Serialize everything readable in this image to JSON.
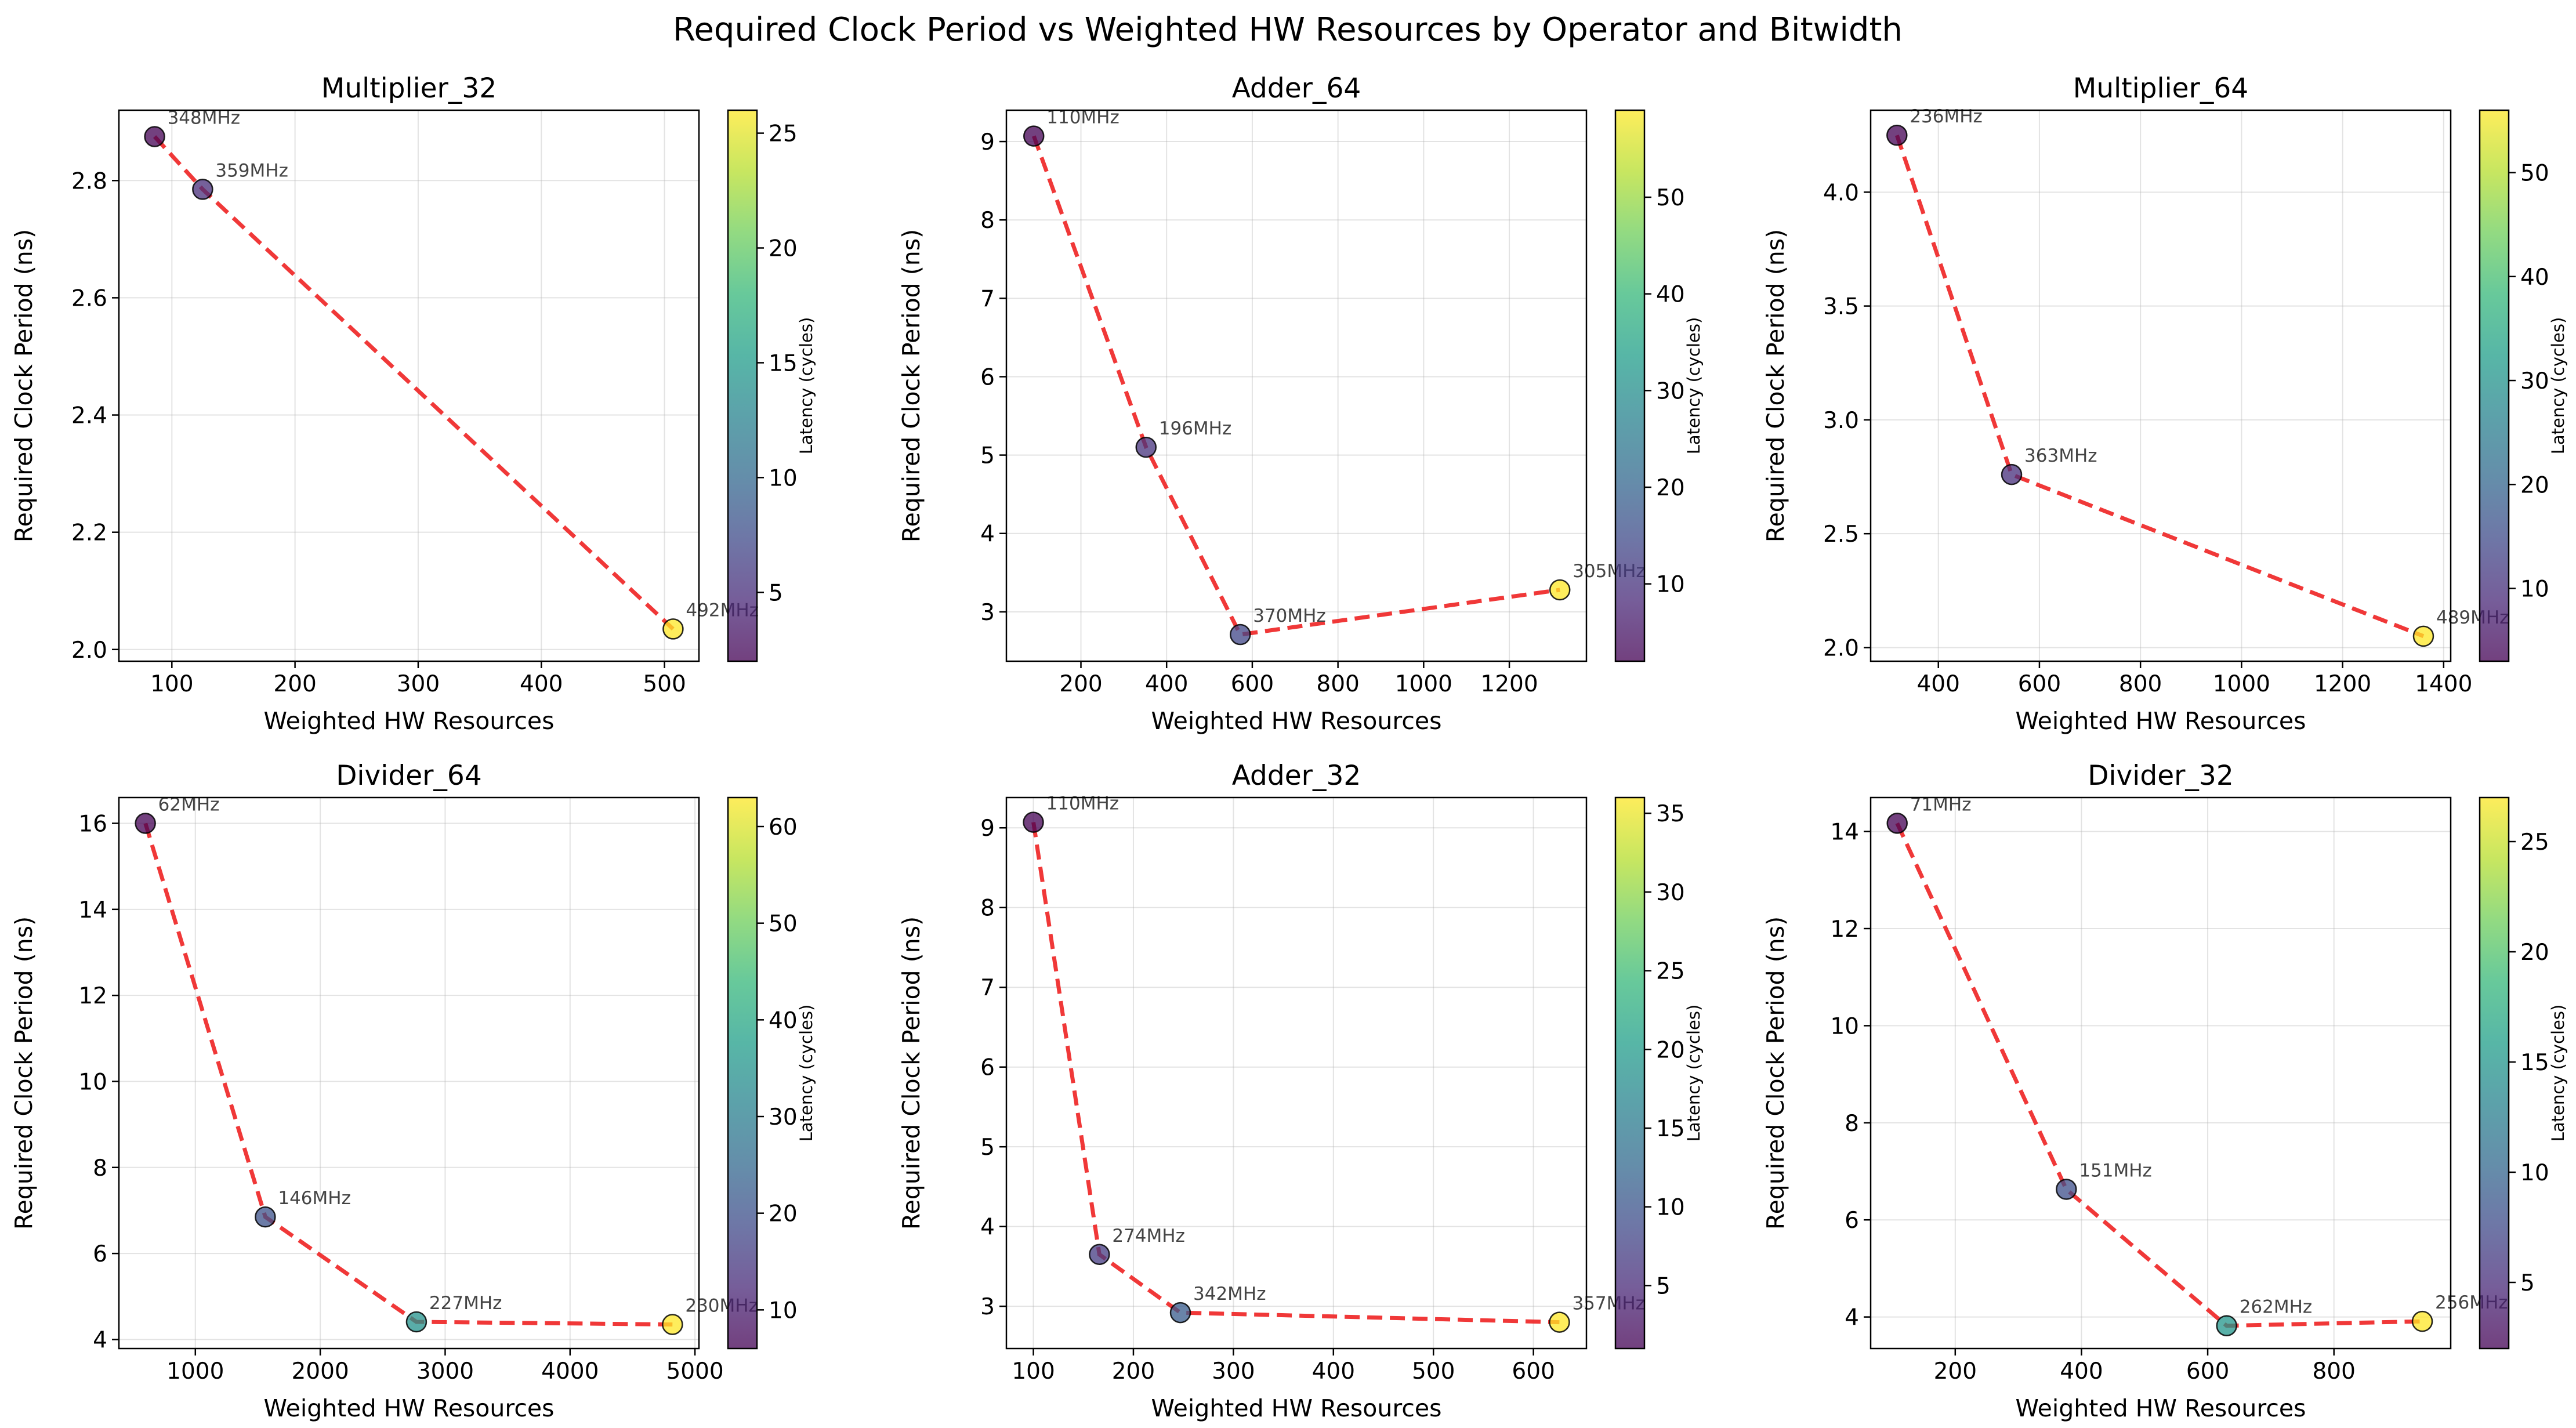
{
  "figure": {
    "title": "Required Clock Period vs Weighted HW Resources by Operator and Bitwidth"
  },
  "colormap": {
    "name": "viridis",
    "stops": [
      "#440154",
      "#482878",
      "#3e4989",
      "#31688e",
      "#26828e",
      "#1f9e89",
      "#35b779",
      "#6ece58",
      "#b5de2b",
      "#fde725"
    ],
    "marker_alpha": 0.75
  },
  "line_color": "#ee2222",
  "chart_data": [
    {
      "type": "scatter",
      "title": "Multiplier_32",
      "xlabel": "Weighted HW Resources",
      "ylabel": "Required Clock Period (ns)",
      "colorbar_label": "Latency (cycles)",
      "xlim": [
        57,
        528
      ],
      "ylim": [
        1.98,
        2.92
      ],
      "xticks": [
        100,
        200,
        300,
        400,
        500
      ],
      "yticks": [
        2.0,
        2.2,
        2.4,
        2.6,
        2.8
      ],
      "clim": [
        2,
        26
      ],
      "cticks": [
        5,
        10,
        15,
        20,
        25
      ],
      "grid": true,
      "points": [
        {
          "x": 86,
          "y": 2.875,
          "latency": 2,
          "label": "348MHz"
        },
        {
          "x": 125,
          "y": 2.785,
          "latency": 5,
          "label": "359MHz"
        },
        {
          "x": 507,
          "y": 2.035,
          "latency": 26,
          "label": "492MHz"
        }
      ]
    },
    {
      "type": "scatter",
      "title": "Adder_64",
      "xlabel": "Weighted HW Resources",
      "ylabel": "Required Clock Period (ns)",
      "colorbar_label": "Latency (cycles)",
      "xlim": [
        26,
        1380
      ],
      "ylim": [
        2.37,
        9.4
      ],
      "xticks": [
        200,
        400,
        600,
        800,
        1000,
        1200
      ],
      "yticks": [
        3,
        4,
        5,
        6,
        7,
        8,
        9
      ],
      "clim": [
        2,
        59
      ],
      "cticks": [
        10,
        20,
        30,
        40,
        50
      ],
      "grid": true,
      "points": [
        {
          "x": 90,
          "y": 9.07,
          "latency": 2,
          "label": "110MHz"
        },
        {
          "x": 352,
          "y": 5.1,
          "latency": 10,
          "label": "196MHz"
        },
        {
          "x": 572,
          "y": 2.71,
          "latency": 14,
          "label": "370MHz"
        },
        {
          "x": 1318,
          "y": 3.28,
          "latency": 59,
          "label": "305MHz"
        }
      ]
    },
    {
      "type": "scatter",
      "title": "Multiplier_64",
      "xlabel": "Weighted HW Resources",
      "ylabel": "Required Clock Period (ns)",
      "colorbar_label": "Latency (cycles)",
      "xlim": [
        266,
        1414
      ],
      "ylim": [
        1.94,
        4.36
      ],
      "xticks": [
        400,
        600,
        800,
        1000,
        1200,
        1400
      ],
      "yticks": [
        2.0,
        2.5,
        3.0,
        3.5,
        4.0
      ],
      "clim": [
        3,
        56
      ],
      "cticks": [
        10,
        20,
        30,
        40,
        50
      ],
      "grid": true,
      "points": [
        {
          "x": 318,
          "y": 4.25,
          "latency": 3,
          "label": "236MHz"
        },
        {
          "x": 545,
          "y": 2.76,
          "latency": 10,
          "label": "363MHz"
        },
        {
          "x": 1360,
          "y": 2.05,
          "latency": 56,
          "label": "489MHz"
        }
      ]
    },
    {
      "type": "scatter",
      "title": "Divider_64",
      "xlabel": "Weighted HW Resources",
      "ylabel": "Required Clock Period (ns)",
      "colorbar_label": "Latency (cycles)",
      "xlim": [
        388,
        5032
      ],
      "ylim": [
        3.79,
        16.6
      ],
      "xticks": [
        1000,
        2000,
        3000,
        4000,
        5000
      ],
      "yticks": [
        4,
        6,
        8,
        10,
        12,
        14,
        16
      ],
      "clim": [
        6,
        63
      ],
      "cticks": [
        10,
        20,
        30,
        40,
        50,
        60
      ],
      "grid": true,
      "points": [
        {
          "x": 600,
          "y": 16.0,
          "latency": 6,
          "label": "62MHz"
        },
        {
          "x": 1560,
          "y": 6.85,
          "latency": 20,
          "label": "146MHz"
        },
        {
          "x": 2770,
          "y": 4.41,
          "latency": 35,
          "label": "227MHz"
        },
        {
          "x": 4820,
          "y": 4.35,
          "latency": 63,
          "label": "230MHz"
        }
      ]
    },
    {
      "type": "scatter",
      "title": "Adder_32",
      "xlabel": "Weighted HW Resources",
      "ylabel": "Required Clock Period (ns)",
      "colorbar_label": "Latency (cycles)",
      "xlim": [
        73,
        653
      ],
      "ylim": [
        2.47,
        9.38
      ],
      "xticks": [
        100,
        200,
        300,
        400,
        500,
        600
      ],
      "yticks": [
        3,
        4,
        5,
        6,
        7,
        8,
        9
      ],
      "clim": [
        1,
        36
      ],
      "cticks": [
        5,
        10,
        15,
        20,
        25,
        30,
        35
      ],
      "grid": true,
      "points": [
        {
          "x": 100,
          "y": 9.07,
          "latency": 1,
          "label": "110MHz"
        },
        {
          "x": 166,
          "y": 3.65,
          "latency": 7,
          "label": "274MHz"
        },
        {
          "x": 247,
          "y": 2.92,
          "latency": 11,
          "label": "342MHz"
        },
        {
          "x": 626,
          "y": 2.8,
          "latency": 36,
          "label": "357MHz"
        }
      ]
    },
    {
      "type": "scatter",
      "title": "Divider_32",
      "xlabel": "Weighted HW Resources",
      "ylabel": "Required Clock Period (ns)",
      "colorbar_label": "Latency (cycles)",
      "xlim": [
        66,
        985
      ],
      "ylim": [
        3.35,
        14.7
      ],
      "xticks": [
        200,
        400,
        600,
        800
      ],
      "yticks": [
        4,
        6,
        8,
        10,
        12,
        14
      ],
      "clim": [
        2,
        27
      ],
      "cticks": [
        5,
        10,
        15,
        20,
        25
      ],
      "grid": true,
      "points": [
        {
          "x": 108,
          "y": 14.17,
          "latency": 2,
          "label": "71MHz"
        },
        {
          "x": 376,
          "y": 6.63,
          "latency": 8,
          "label": "151MHz"
        },
        {
          "x": 630,
          "y": 3.82,
          "latency": 15,
          "label": "262MHz"
        },
        {
          "x": 940,
          "y": 3.91,
          "latency": 27,
          "label": "256MHz"
        }
      ]
    }
  ]
}
